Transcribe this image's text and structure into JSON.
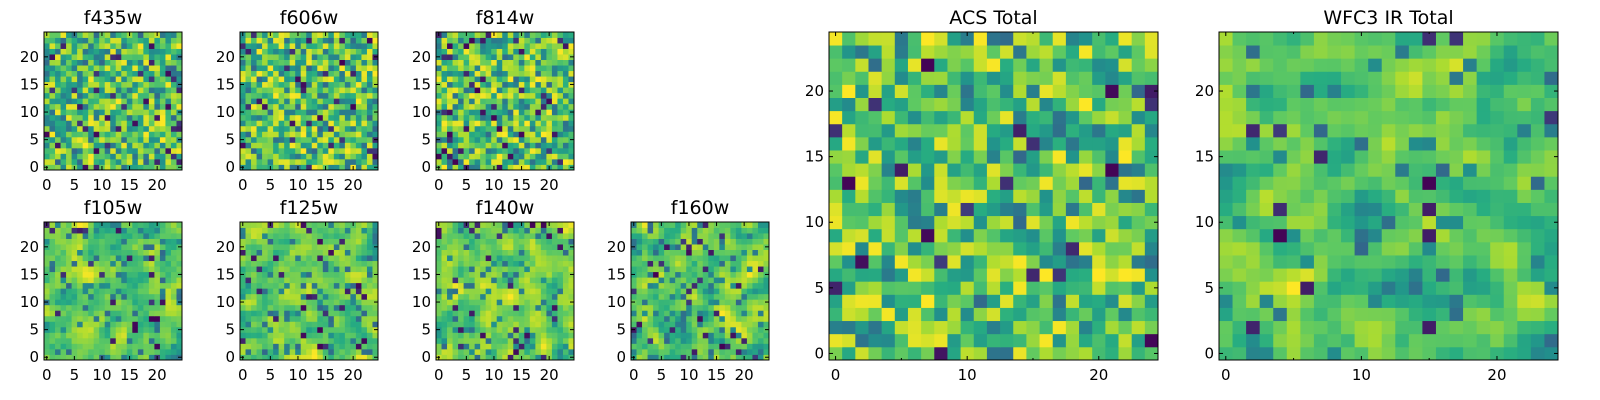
{
  "colormap": [
    "#440154",
    "#3b528b",
    "#21918c",
    "#27ad81",
    "#5ec962",
    "#addc30",
    "#fde725"
  ],
  "chart_data": [
    {
      "type": "heatmap",
      "title": "f435w",
      "grid_size": 25,
      "seed": 11,
      "blur": 0,
      "dark_frac": 0.06,
      "xticks": [
        0,
        5,
        10,
        15,
        20
      ],
      "yticks": [
        0,
        5,
        10,
        15,
        20
      ],
      "xlim": [
        -0.5,
        24.5
      ],
      "ylim": [
        -0.5,
        24.5
      ],
      "cmap": "viridis"
    },
    {
      "type": "heatmap",
      "title": "f606w",
      "grid_size": 25,
      "seed": 23,
      "blur": 0,
      "dark_frac": 0.06,
      "xticks": [
        0,
        5,
        10,
        15,
        20
      ],
      "yticks": [
        0,
        5,
        10,
        15,
        20
      ],
      "xlim": [
        -0.5,
        24.5
      ],
      "ylim": [
        -0.5,
        24.5
      ],
      "cmap": "viridis"
    },
    {
      "type": "heatmap",
      "title": "f814w",
      "grid_size": 25,
      "seed": 37,
      "blur": 0,
      "dark_frac": 0.06,
      "xticks": [
        0,
        5,
        10,
        15,
        20
      ],
      "yticks": [
        0,
        5,
        10,
        15,
        20
      ],
      "xlim": [
        -0.5,
        24.5
      ],
      "ylim": [
        -0.5,
        24.5
      ],
      "cmap": "viridis"
    },
    {
      "type": "heatmap",
      "title": "f105w",
      "grid_size": 25,
      "seed": 41,
      "blur": 1,
      "dark_frac": 0.05,
      "xticks": [
        0,
        5,
        10,
        15,
        20
      ],
      "yticks": [
        0,
        5,
        10,
        15,
        20
      ],
      "xlim": [
        -0.5,
        24.5
      ],
      "ylim": [
        -0.5,
        24.5
      ],
      "cmap": "viridis"
    },
    {
      "type": "heatmap",
      "title": "f125w",
      "grid_size": 25,
      "seed": 53,
      "blur": 1,
      "dark_frac": 0.05,
      "xticks": [
        0,
        5,
        10,
        15,
        20
      ],
      "yticks": [
        0,
        5,
        10,
        15,
        20
      ],
      "xlim": [
        -0.5,
        24.5
      ],
      "ylim": [
        -0.5,
        24.5
      ],
      "cmap": "viridis"
    },
    {
      "type": "heatmap",
      "title": "f140w",
      "grid_size": 25,
      "seed": 67,
      "blur": 1,
      "dark_frac": 0.05,
      "xticks": [
        0,
        5,
        10,
        15,
        20
      ],
      "yticks": [
        0,
        5,
        10,
        15,
        20
      ],
      "xlim": [
        -0.5,
        24.5
      ],
      "ylim": [
        -0.5,
        24.5
      ],
      "cmap": "viridis"
    },
    {
      "type": "heatmap",
      "title": "f160w",
      "grid_size": 25,
      "seed": 79,
      "blur": 1,
      "dark_frac": 0.05,
      "xticks": [
        0,
        5,
        10,
        15,
        20
      ],
      "yticks": [
        0,
        5,
        10,
        15,
        20
      ],
      "xlim": [
        -0.5,
        24.5
      ],
      "ylim": [
        -0.5,
        24.5
      ],
      "cmap": "viridis"
    },
    {
      "type": "heatmap",
      "title": "ACS Total",
      "grid_size": 25,
      "seed": 97,
      "blur": 0,
      "dark_frac": 0.03,
      "xticks": [
        0,
        10,
        20
      ],
      "xticks_minor": [
        5,
        15
      ],
      "yticks": [
        0,
        5,
        10,
        15,
        20
      ],
      "xlim": [
        -0.5,
        24.5
      ],
      "ylim": [
        -0.5,
        24.5
      ],
      "cmap": "viridis"
    },
    {
      "type": "heatmap",
      "title": "WFC3 IR Total",
      "grid_size": 25,
      "seed": 131,
      "blur": 1,
      "dark_frac": 0.03,
      "xticks": [
        0,
        10,
        20
      ],
      "xticks_minor": [
        5,
        15
      ],
      "yticks": [
        0,
        5,
        10,
        15,
        20
      ],
      "xlim": [
        -0.5,
        24.5
      ],
      "ylim": [
        -0.5,
        24.5
      ],
      "cmap": "viridis"
    }
  ]
}
